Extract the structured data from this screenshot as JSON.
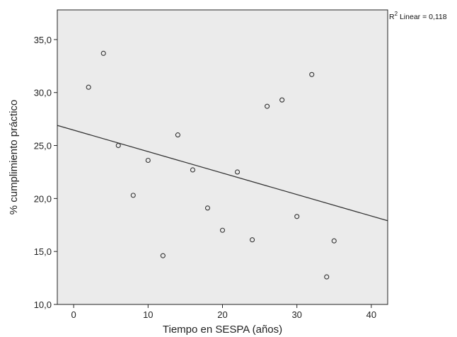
{
  "chart_data": {
    "type": "scatter",
    "xlabel": "Tiempo en SESPA (años)",
    "ylabel": "% cumplimiento práctico",
    "xlim": [
      -2.2,
      42.2
    ],
    "ylim": [
      10,
      37.8
    ],
    "x_ticks": [
      0,
      10,
      20,
      30,
      40
    ],
    "x_tick_labels": [
      "0",
      "10",
      "20",
      "30",
      "40"
    ],
    "y_ticks": [
      10,
      15,
      20,
      25,
      30,
      35
    ],
    "y_tick_labels": [
      "10,0",
      "15,0",
      "20,0",
      "25,0",
      "30,0",
      "35,0"
    ],
    "grid": false,
    "points": [
      {
        "x": 2,
        "y": 30.5
      },
      {
        "x": 4,
        "y": 33.7
      },
      {
        "x": 6,
        "y": 25.0
      },
      {
        "x": 8,
        "y": 20.3
      },
      {
        "x": 10,
        "y": 23.6
      },
      {
        "x": 12,
        "y": 14.6
      },
      {
        "x": 14,
        "y": 26.0
      },
      {
        "x": 16,
        "y": 22.7
      },
      {
        "x": 18,
        "y": 19.1
      },
      {
        "x": 20,
        "y": 17.0
      },
      {
        "x": 22,
        "y": 22.5
      },
      {
        "x": 24,
        "y": 16.1
      },
      {
        "x": 26,
        "y": 28.7
      },
      {
        "x": 28,
        "y": 29.3
      },
      {
        "x": 30,
        "y": 18.3
      },
      {
        "x": 32,
        "y": 31.7
      },
      {
        "x": 34,
        "y": 12.6
      },
      {
        "x": 35,
        "y": 16.0
      }
    ],
    "fit_line": {
      "x": [
        -2.2,
        42.2
      ],
      "y": [
        26.9,
        17.9
      ]
    },
    "annotation": {
      "r2_symbol": "R",
      "r2_superscript": "2",
      "r2_text": " Linear = 0,118"
    },
    "colors": {
      "plot_background": "#ebebeb",
      "outer_background": "#ffffff",
      "axis": "#222222",
      "marker_stroke": "#333333",
      "fit_line": "#333333"
    }
  }
}
